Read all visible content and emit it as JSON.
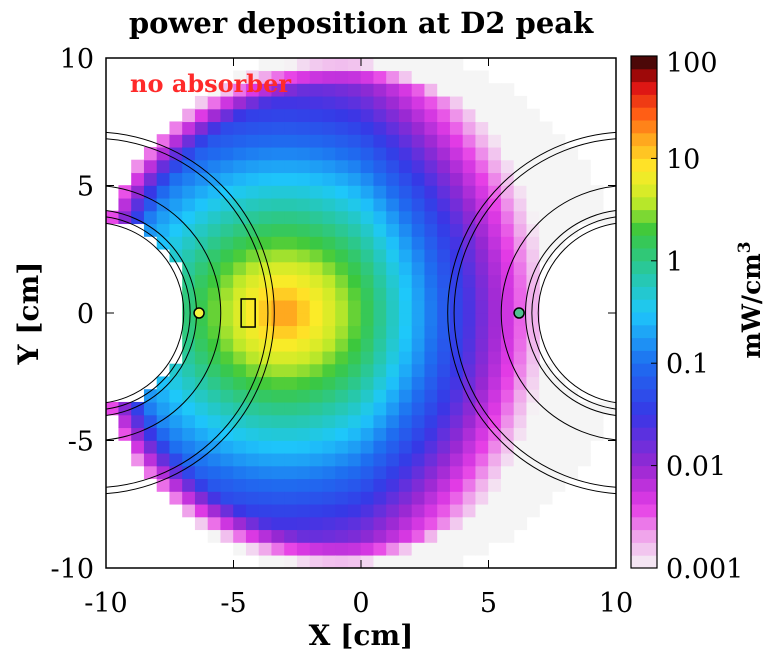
{
  "chart_data": {
    "type": "heatmap",
    "title": "power deposition at D2 peak",
    "xlabel": "X [cm]",
    "ylabel": "Y [cm]",
    "xlim": [
      -10,
      10
    ],
    "ylim": [
      -10,
      10
    ],
    "x_ticks": [
      "-10",
      "-5",
      "0",
      "5",
      "10"
    ],
    "y_ticks": [
      "10",
      "5",
      "0",
      "-5",
      "-10"
    ],
    "annotation": "no absorber",
    "annotation_color": "#ff2a2a",
    "colorbar": {
      "label": "mW/cm",
      "label_superscript": "3",
      "scale": "log",
      "range": [
        0.001,
        100
      ],
      "ticks": [
        "100",
        "10",
        "1",
        "0.1",
        "0.01",
        "0.001"
      ]
    },
    "hot_spot": {
      "x": -3.0,
      "y": 0.0,
      "peak_value": 20
    },
    "apertures": [
      {
        "center_x": -10.5,
        "center_y": 0,
        "radius": 3.8
      },
      {
        "center_x": 10.5,
        "center_y": 0,
        "radius": 3.8
      }
    ]
  }
}
